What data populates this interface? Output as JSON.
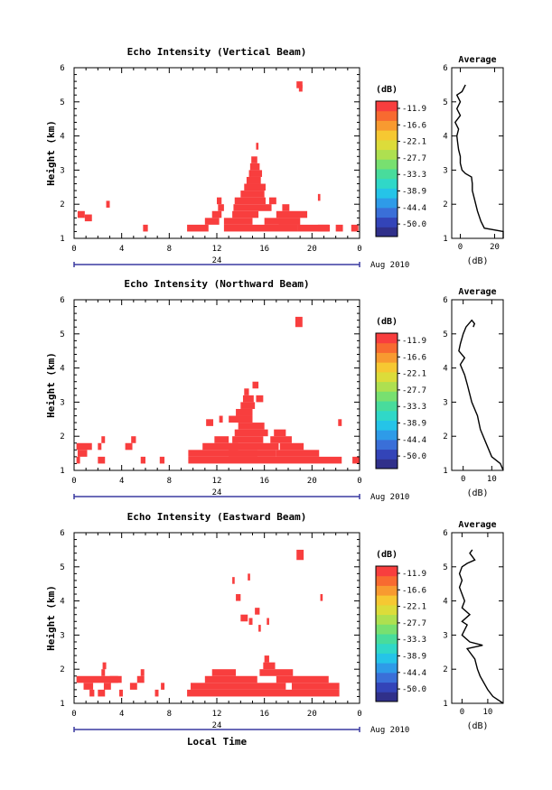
{
  "figure_xlabel": "Local Time",
  "colorbar": {
    "unit_label": "(dB)",
    "ticks": [
      "-11.9",
      "-16.6",
      "-22.1",
      "-27.7",
      "-33.3",
      "-38.9",
      "-44.4",
      "-50.0"
    ],
    "colors": [
      "#30308a",
      "#3344b8",
      "#3a6fd8",
      "#2e9be8",
      "#25c4e8",
      "#30d8c8",
      "#48dc9c",
      "#78e070",
      "#aee050",
      "#dcdc3a",
      "#f6c832",
      "#f89a30",
      "#f86a30",
      "#f83e3e"
    ]
  },
  "shared": {
    "date_text": "24",
    "date_suffix": "Aug 2010",
    "x_ticks": [
      "0",
      "4",
      "8",
      "12",
      "16",
      "20",
      "0"
    ],
    "y_ticks": [
      "1",
      "2",
      "3",
      "4",
      "5",
      "6"
    ],
    "ylabel": "Height (km)",
    "avg_title": "Average",
    "avg_xlabel": "(dB)"
  },
  "chart_data": [
    {
      "type": "heatmap",
      "title": "Echo Intensity (Vertical Beam)",
      "x_range_hours": [
        0,
        24
      ],
      "y_range_km": [
        1,
        6
      ],
      "color_value": "-11.9 dB and above",
      "cells_hours_km": [
        [
          0.3,
          1.6,
          0.6,
          0.2
        ],
        [
          0.9,
          1.5,
          0.6,
          0.2
        ],
        [
          2.7,
          1.9,
          0.3,
          0.2
        ],
        [
          5.8,
          1.2,
          0.4,
          0.2
        ],
        [
          9.5,
          1.2,
          1.8,
          0.2
        ],
        [
          11.0,
          1.4,
          1.2,
          0.2
        ],
        [
          11.6,
          1.6,
          0.8,
          0.2
        ],
        [
          12.1,
          1.8,
          0.5,
          0.2
        ],
        [
          12.6,
          1.2,
          6.2,
          0.2
        ],
        [
          12.6,
          1.4,
          2.4,
          0.2
        ],
        [
          13.3,
          1.6,
          2.2,
          0.2
        ],
        [
          13.4,
          1.8,
          3.2,
          0.2
        ],
        [
          13.5,
          2.0,
          2.6,
          0.2
        ],
        [
          14.0,
          2.2,
          2.0,
          0.2
        ],
        [
          14.3,
          2.4,
          1.8,
          0.2
        ],
        [
          14.5,
          2.6,
          1.2,
          0.2
        ],
        [
          14.7,
          2.8,
          1.1,
          0.2
        ],
        [
          14.8,
          3.0,
          0.8,
          0.2
        ],
        [
          14.9,
          3.2,
          0.5,
          0.2
        ],
        [
          15.3,
          3.6,
          0.2,
          0.2
        ],
        [
          16.0,
          1.4,
          3.0,
          0.2
        ],
        [
          17.0,
          1.6,
          2.6,
          0.2
        ],
        [
          17.2,
          1.4,
          1.8,
          0.2
        ],
        [
          17.5,
          1.8,
          0.6,
          0.2
        ],
        [
          16.4,
          2.0,
          0.6,
          0.2
        ],
        [
          12.0,
          2.0,
          0.4,
          0.2
        ],
        [
          18.8,
          1.2,
          2.6,
          0.2
        ],
        [
          20.5,
          1.2,
          1.0,
          0.2
        ],
        [
          22.0,
          1.2,
          0.6,
          0.2
        ],
        [
          23.3,
          1.2,
          0.6,
          0.2
        ],
        [
          20.5,
          2.1,
          0.2,
          0.2
        ],
        [
          18.7,
          5.4,
          0.5,
          0.2
        ],
        [
          18.9,
          5.3,
          0.3,
          0.2
        ]
      ],
      "average_profile": {
        "xticks": [
          "0",
          "20"
        ],
        "xlim": [
          -5,
          25
        ],
        "points_db_km": [
          [
            26,
            1.0
          ],
          [
            25,
            1.2
          ],
          [
            14,
            1.3
          ],
          [
            12,
            1.5
          ],
          [
            10,
            1.8
          ],
          [
            9,
            2.0
          ],
          [
            8,
            2.2
          ],
          [
            7,
            2.4
          ],
          [
            7,
            2.6
          ],
          [
            6.5,
            2.8
          ],
          [
            3,
            2.9
          ],
          [
            1,
            3.0
          ],
          [
            0,
            3.2
          ],
          [
            0,
            3.4
          ],
          [
            -1,
            3.6
          ],
          [
            -1.5,
            3.8
          ],
          [
            -2,
            4.0
          ],
          [
            -1,
            4.2
          ],
          [
            -3,
            4.4
          ],
          [
            0,
            4.6
          ],
          [
            -2,
            4.8
          ],
          [
            0,
            5.0
          ],
          [
            -2,
            5.2
          ],
          [
            1,
            5.3
          ],
          [
            3,
            5.5
          ]
        ]
      }
    },
    {
      "type": "heatmap",
      "title": "Echo Intensity (Northward Beam)",
      "x_range_hours": [
        0,
        24
      ],
      "y_range_km": [
        1,
        6
      ],
      "color_value": "-11.9 dB and above",
      "cells_hours_km": [
        [
          0.2,
          1.6,
          1.3,
          0.2
        ],
        [
          0.3,
          1.4,
          0.8,
          0.2
        ],
        [
          0.2,
          1.2,
          0.3,
          0.2
        ],
        [
          2.0,
          1.2,
          0.6,
          0.2
        ],
        [
          2.0,
          1.6,
          0.3,
          0.2
        ],
        [
          2.3,
          1.8,
          0.3,
          0.2
        ],
        [
          4.3,
          1.6,
          0.6,
          0.2
        ],
        [
          4.8,
          1.8,
          0.4,
          0.2
        ],
        [
          5.6,
          1.2,
          0.4,
          0.2
        ],
        [
          7.2,
          1.2,
          0.4,
          0.2
        ],
        [
          9.6,
          1.2,
          12.9,
          0.2
        ],
        [
          9.6,
          1.4,
          5.8,
          0.2
        ],
        [
          10.8,
          1.6,
          3.0,
          0.2
        ],
        [
          11.8,
          1.8,
          1.2,
          0.2
        ],
        [
          13.0,
          1.4,
          4.0,
          0.2
        ],
        [
          13.0,
          1.6,
          4.2,
          0.2
        ],
        [
          13.3,
          1.8,
          2.6,
          0.2
        ],
        [
          13.5,
          2.0,
          2.8,
          0.2
        ],
        [
          13.8,
          2.2,
          2.2,
          0.2
        ],
        [
          13.0,
          2.4,
          2.0,
          0.2
        ],
        [
          13.6,
          2.6,
          1.4,
          0.2
        ],
        [
          14.0,
          2.8,
          1.2,
          0.2
        ],
        [
          14.2,
          3.0,
          0.9,
          0.2
        ],
        [
          14.3,
          3.2,
          0.4,
          0.2
        ],
        [
          15.0,
          3.4,
          0.5,
          0.2
        ],
        [
          15.3,
          3.0,
          0.6,
          0.2
        ],
        [
          17.0,
          1.4,
          3.6,
          0.2
        ],
        [
          17.3,
          1.6,
          2.0,
          0.2
        ],
        [
          16.5,
          1.8,
          1.8,
          0.2
        ],
        [
          16.8,
          2.0,
          1.0,
          0.2
        ],
        [
          11.1,
          2.3,
          0.6,
          0.2
        ],
        [
          12.2,
          2.4,
          0.3,
          0.2
        ],
        [
          22.2,
          2.3,
          0.3,
          0.2
        ],
        [
          23.4,
          1.2,
          0.6,
          0.2
        ],
        [
          18.6,
          5.2,
          0.6,
          0.3
        ]
      ],
      "average_profile": {
        "xticks": [
          "0",
          "10"
        ],
        "xlim": [
          -4,
          14
        ],
        "points_db_km": [
          [
            15,
            1.0
          ],
          [
            13,
            1.2
          ],
          [
            10,
            1.4
          ],
          [
            8,
            1.8
          ],
          [
            6,
            2.2
          ],
          [
            5,
            2.6
          ],
          [
            3,
            3.0
          ],
          [
            1.5,
            3.5
          ],
          [
            0.5,
            3.8
          ],
          [
            -1,
            4.1
          ],
          [
            0.5,
            4.3
          ],
          [
            -1.5,
            4.5
          ],
          [
            -1,
            4.7
          ],
          [
            0,
            5.0
          ],
          [
            1,
            5.2
          ],
          [
            3,
            5.4
          ],
          [
            4,
            5.3
          ],
          [
            3.5,
            5.2
          ]
        ]
      }
    },
    {
      "type": "heatmap",
      "title": "Echo Intensity (Eastward Beam)",
      "x_range_hours": [
        0,
        24
      ],
      "y_range_km": [
        1,
        6
      ],
      "color_value": "-11.9 dB and above",
      "cells_hours_km": [
        [
          0.2,
          1.6,
          3.5,
          0.2
        ],
        [
          0.8,
          1.4,
          0.8,
          0.2
        ],
        [
          1.3,
          1.2,
          0.4,
          0.2
        ],
        [
          2.0,
          1.2,
          0.6,
          0.2
        ],
        [
          2.3,
          1.8,
          0.3,
          0.2
        ],
        [
          2.4,
          2.0,
          0.3,
          0.2
        ],
        [
          2.5,
          1.4,
          0.6,
          0.2
        ],
        [
          3.0,
          1.6,
          1.0,
          0.2
        ],
        [
          3.8,
          1.2,
          0.3,
          0.2
        ],
        [
          4.7,
          1.4,
          0.6,
          0.2
        ],
        [
          5.3,
          1.6,
          0.6,
          0.2
        ],
        [
          5.6,
          1.8,
          0.3,
          0.2
        ],
        [
          6.8,
          1.2,
          0.3,
          0.2
        ],
        [
          7.3,
          1.4,
          0.3,
          0.2
        ],
        [
          9.5,
          1.2,
          12.8,
          0.2
        ],
        [
          9.8,
          1.4,
          8.0,
          0.2
        ],
        [
          11.0,
          1.6,
          4.4,
          0.2
        ],
        [
          11.6,
          1.8,
          2.0,
          0.2
        ],
        [
          15.6,
          1.8,
          2.8,
          0.2
        ],
        [
          15.9,
          2.0,
          1.0,
          0.2
        ],
        [
          16.0,
          2.2,
          0.4,
          0.2
        ],
        [
          17.0,
          1.6,
          4.4,
          0.2
        ],
        [
          18.3,
          1.4,
          4.0,
          0.2
        ],
        [
          13.3,
          4.5,
          0.2,
          0.2
        ],
        [
          13.6,
          4.0,
          0.4,
          0.2
        ],
        [
          14.0,
          3.4,
          0.6,
          0.2
        ],
        [
          14.6,
          4.6,
          0.2,
          0.2
        ],
        [
          14.7,
          3.3,
          0.3,
          0.2
        ],
        [
          15.2,
          3.6,
          0.4,
          0.2
        ],
        [
          15.5,
          3.1,
          0.2,
          0.2
        ],
        [
          16.2,
          3.3,
          0.2,
          0.2
        ],
        [
          20.7,
          4.0,
          0.2,
          0.2
        ],
        [
          18.7,
          5.2,
          0.6,
          0.3
        ]
      ],
      "average_profile": {
        "xticks": [
          "0",
          "10"
        ],
        "xlim": [
          -4,
          16
        ],
        "points_db_km": [
          [
            16,
            1.0
          ],
          [
            12,
            1.2
          ],
          [
            10,
            1.4
          ],
          [
            7,
            1.8
          ],
          [
            6,
            2.0
          ],
          [
            5,
            2.3
          ],
          [
            2,
            2.6
          ],
          [
            8,
            2.7
          ],
          [
            3,
            2.8
          ],
          [
            0,
            3.0
          ],
          [
            2,
            3.3
          ],
          [
            0,
            3.4
          ],
          [
            3,
            3.6
          ],
          [
            0,
            3.8
          ],
          [
            1,
            4.0
          ],
          [
            0,
            4.2
          ],
          [
            -1,
            4.4
          ],
          [
            0,
            4.6
          ],
          [
            -1,
            4.8
          ],
          [
            0,
            5.0
          ],
          [
            2,
            5.1
          ],
          [
            5,
            5.2
          ],
          [
            3,
            5.4
          ],
          [
            4,
            5.5
          ]
        ]
      }
    }
  ]
}
